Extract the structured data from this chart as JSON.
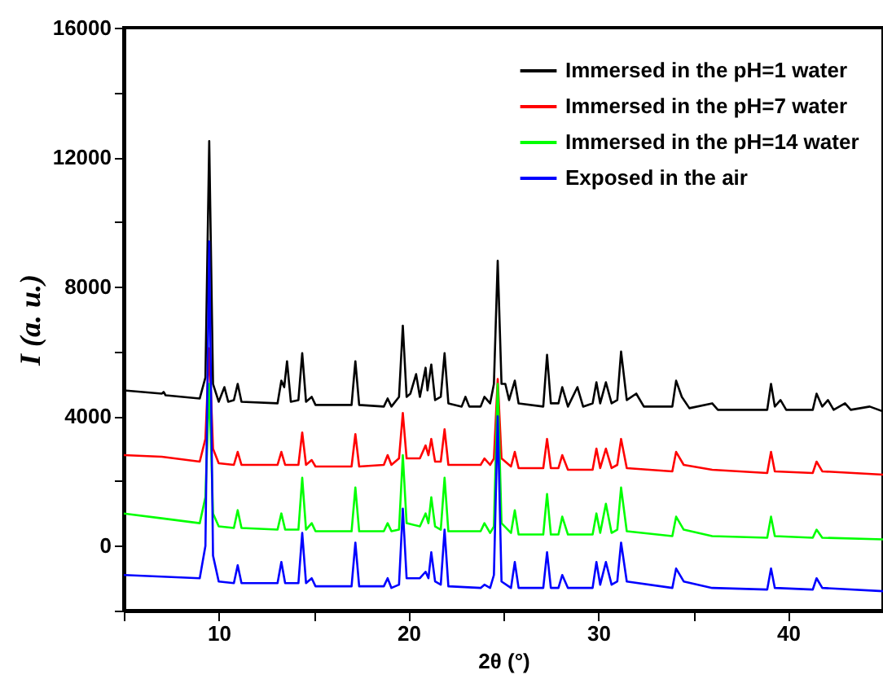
{
  "chart_data": {
    "type": "line",
    "xlabel": "2θ (°)",
    "ylabel": "I (a. u.)",
    "xlim": [
      5,
      45
    ],
    "ylim": [
      -2000,
      16000
    ],
    "xticks": [
      {
        "value": 5,
        "label": null
      },
      10,
      {
        "value": 15,
        "label": null
      },
      20,
      {
        "value": 25,
        "label": null
      },
      30,
      {
        "value": 35,
        "label": null
      },
      40,
      {
        "value": 45,
        "label": null
      }
    ],
    "yticks": [
      {
        "value": -2000,
        "label": null
      },
      0,
      {
        "value": 2000,
        "label": null
      },
      4000,
      {
        "value": 6000,
        "label": null
      },
      8000,
      {
        "value": 10000,
        "label": null
      },
      12000,
      {
        "value": 14000,
        "label": null
      },
      16000
    ],
    "legend": "top right",
    "x": [
      5,
      7,
      9,
      9.3,
      9.5,
      9.7,
      10,
      10.8,
      11.0,
      11.2,
      13.1,
      13.3,
      13.5,
      14.2,
      14.4,
      14.6,
      14.9,
      15.1,
      17.0,
      17.2,
      17.4,
      18.7,
      18.9,
      19.1,
      19.5,
      19.7,
      19.9,
      20.6,
      20.9,
      21.05,
      21.2,
      21.4,
      21.7,
      21.9,
      22.1,
      23.8,
      24.0,
      24.3,
      24.5,
      24.7,
      24.9,
      25.4,
      25.6,
      25.8,
      27.1,
      27.3,
      27.5,
      27.9,
      28.1,
      28.4,
      29.7,
      29.9,
      30.1,
      30.4,
      30.7,
      31.0,
      31.2,
      31.5,
      33.9,
      34.1,
      34.5,
      36.0,
      38.9,
      39.1,
      39.3,
      41.3,
      41.5,
      41.8,
      45
    ],
    "series": [
      {
        "name": "Immersed in the pH=1 water",
        "color": "#000000",
        "x": [
          5,
          7,
          7.1,
          7.2,
          9,
          9.3,
          9.5,
          9.7,
          10,
          10.3,
          10.5,
          10.8,
          11.0,
          11.2,
          13.1,
          13.3,
          13.45,
          13.6,
          13.8,
          14.2,
          14.4,
          14.6,
          14.9,
          15.1,
          17.0,
          17.2,
          17.4,
          18.7,
          18.9,
          19.1,
          19.5,
          19.7,
          19.9,
          20.1,
          20.4,
          20.6,
          20.9,
          21.0,
          21.2,
          21.4,
          21.7,
          21.9,
          22.1,
          22.8,
          23.0,
          23.2,
          23.8,
          24.0,
          24.3,
          24.5,
          24.7,
          24.9,
          25.1,
          25.3,
          25.6,
          25.8,
          27.1,
          27.3,
          27.5,
          27.9,
          28.1,
          28.4,
          28.9,
          29.2,
          29.7,
          29.9,
          30.1,
          30.4,
          30.7,
          31.0,
          31.2,
          31.5,
          32.0,
          32.4,
          33.9,
          34.1,
          34.4,
          34.8,
          36.0,
          36.3,
          38.9,
          39.1,
          39.3,
          39.6,
          39.9,
          41.3,
          41.5,
          41.8,
          42.1,
          42.4,
          43.0,
          43.3,
          44.3,
          45
        ],
        "values": [
          4800,
          4700,
          4750,
          4650,
          4550,
          5200,
          12500,
          5000,
          4450,
          4900,
          4450,
          4500,
          5000,
          4450,
          4400,
          5100,
          4900,
          5700,
          4450,
          4500,
          5950,
          4450,
          4600,
          4350,
          4350,
          5700,
          4350,
          4300,
          4550,
          4300,
          4600,
          6800,
          4600,
          4700,
          5300,
          4600,
          5500,
          4800,
          5600,
          4500,
          4600,
          5950,
          4400,
          4300,
          4600,
          4300,
          4300,
          4600,
          4400,
          5000,
          8800,
          5000,
          5000,
          4500,
          5100,
          4400,
          4300,
          5900,
          4400,
          4400,
          4900,
          4300,
          4900,
          4300,
          4400,
          5050,
          4400,
          5050,
          4400,
          4500,
          6000,
          4500,
          4700,
          4300,
          4300,
          5100,
          4600,
          4250,
          4400,
          4200,
          4200,
          5000,
          4300,
          4500,
          4200,
          4200,
          4700,
          4300,
          4500,
          4200,
          4400,
          4200,
          4300,
          4150
        ]
      },
      {
        "name": "Immersed in the pH=7 water",
        "color": "#ff0000",
        "values": [
          2800,
          2750,
          2600,
          3300,
          6100,
          3000,
          2550,
          2500,
          2900,
          2500,
          2500,
          2900,
          2500,
          2500,
          3500,
          2500,
          2650,
          2450,
          2450,
          3450,
          2450,
          2500,
          2800,
          2500,
          2700,
          4100,
          2700,
          2700,
          3100,
          2800,
          3300,
          2600,
          2600,
          3600,
          2500,
          2500,
          2700,
          2500,
          2700,
          5150,
          2700,
          2450,
          2900,
          2400,
          2400,
          3300,
          2400,
          2400,
          2800,
          2350,
          2350,
          3000,
          2400,
          3000,
          2400,
          2500,
          3300,
          2400,
          2300,
          2900,
          2500,
          2350,
          2250,
          2900,
          2300,
          2250,
          2600,
          2300,
          2200
        ]
      },
      {
        "name": "Immersed in the pH=14 water",
        "color": "#00ff00",
        "values": [
          1000,
          850,
          700,
          1500,
          5000,
          1000,
          600,
          550,
          1100,
          550,
          500,
          1000,
          500,
          500,
          2100,
          500,
          700,
          450,
          450,
          1800,
          450,
          450,
          700,
          450,
          500,
          2800,
          700,
          600,
          1000,
          700,
          1500,
          600,
          500,
          2100,
          450,
          450,
          700,
          400,
          600,
          5000,
          700,
          400,
          1100,
          350,
          350,
          1600,
          350,
          350,
          900,
          350,
          350,
          1000,
          400,
          1300,
          400,
          500,
          1800,
          450,
          300,
          900,
          500,
          300,
          250,
          900,
          300,
          250,
          500,
          250,
          200
        ]
      },
      {
        "name": "Exposed in the air",
        "color": "#0000ff",
        "values": [
          -900,
          -950,
          -1000,
          0,
          9400,
          -300,
          -1100,
          -1150,
          -600,
          -1150,
          -1150,
          -500,
          -1150,
          -1150,
          400,
          -1150,
          -1000,
          -1250,
          -1250,
          100,
          -1250,
          -1250,
          -1000,
          -1300,
          -1200,
          1150,
          -1000,
          -1000,
          -800,
          -1000,
          -200,
          -1100,
          -1200,
          500,
          -1250,
          -1300,
          -1200,
          -1300,
          -900,
          4000,
          -1100,
          -1300,
          -500,
          -1300,
          -1300,
          -200,
          -1300,
          -1300,
          -900,
          -1300,
          -1300,
          -500,
          -1200,
          -500,
          -1200,
          -1100,
          100,
          -1100,
          -1300,
          -700,
          -1100,
          -1300,
          -1350,
          -700,
          -1300,
          -1350,
          -1000,
          -1300,
          -1400
        ]
      }
    ]
  }
}
